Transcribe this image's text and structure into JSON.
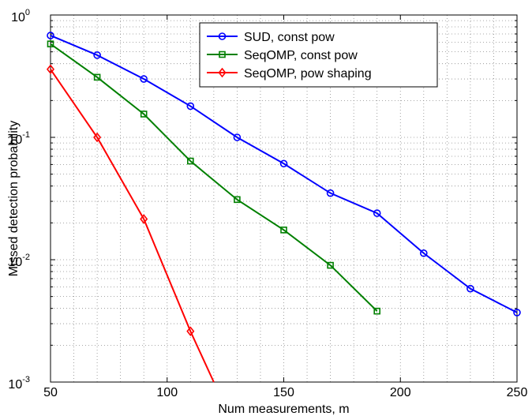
{
  "chart_data": {
    "type": "line",
    "xlabel": "Num measurements, m",
    "ylabel": "Missed detection probability",
    "xlim": [
      50,
      250
    ],
    "ylim": [
      0.001,
      1
    ],
    "yscale": "log",
    "grid": true,
    "legend_position": "top-center",
    "x_ticks": [
      "50",
      "100",
      "150",
      "200",
      "250"
    ],
    "y_ticks": [
      {
        "value": 0.001,
        "base": "10",
        "exp": "-3"
      },
      {
        "value": 0.01,
        "base": "10",
        "exp": "-2"
      },
      {
        "value": 0.1,
        "base": "10",
        "exp": "-1"
      },
      {
        "value": 1,
        "base": "10",
        "exp": "0"
      }
    ],
    "series": [
      {
        "name": "SUD, const pow",
        "color": "#0000ff",
        "marker": "circle",
        "x": [
          50,
          70,
          90,
          110,
          130,
          150,
          170,
          190,
          210,
          230,
          250
        ],
        "y": [
          0.68,
          0.47,
          0.3,
          0.18,
          0.1,
          0.061,
          0.035,
          0.024,
          0.0113,
          0.0058,
          0.0037
        ]
      },
      {
        "name": "SeqOMP, const pow",
        "color": "#008000",
        "marker": "square",
        "x": [
          50,
          70,
          90,
          110,
          130,
          150,
          170,
          190
        ],
        "y": [
          0.58,
          0.31,
          0.155,
          0.064,
          0.031,
          0.0175,
          0.009,
          0.0038
        ]
      },
      {
        "name": "SeqOMP, pow shaping",
        "color": "#ff0000",
        "marker": "diamond",
        "x": [
          50,
          70,
          90,
          110,
          120
        ],
        "y": [
          0.36,
          0.1,
          0.0215,
          0.0026,
          0.001
        ]
      }
    ]
  }
}
